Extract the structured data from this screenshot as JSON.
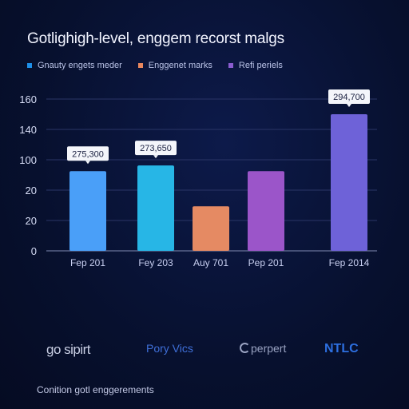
{
  "title": "Gotlighigh-level, enggem recorst malgs",
  "legend": [
    {
      "label": "Gnauty engets meder",
      "color": "#1e8fe8"
    },
    {
      "label": "Enggenet marks",
      "color": "#e8875e"
    },
    {
      "label": "Refi periels",
      "color": "#8a5cd0"
    }
  ],
  "chart_data": {
    "type": "bar",
    "title": "Gotlighigh-level, enggem recorst malgs",
    "xlabel": "",
    "ylabel": "",
    "ytick_labels": [
      "0",
      "20",
      "20",
      "100",
      "140",
      "160"
    ],
    "categories": [
      "Fep 201",
      "Fey 203",
      "Auy 701",
      "Pep 201",
      "Fep 2014"
    ],
    "values": [
      84,
      90,
      47,
      84,
      144
    ],
    "data_labels": [
      "275,300",
      "273,650",
      "",
      "",
      "294,700"
    ],
    "colors": [
      "#4a9ff8",
      "#27b6e6",
      "#e58a63",
      "#9b55c9",
      "#6e62d8"
    ],
    "ylim": [
      0,
      160
    ],
    "grid": true
  },
  "logos": [
    "go sipirt",
    "Pory Vics",
    "perpert",
    "NTLC"
  ],
  "footer": "Conition gotl enggerements"
}
